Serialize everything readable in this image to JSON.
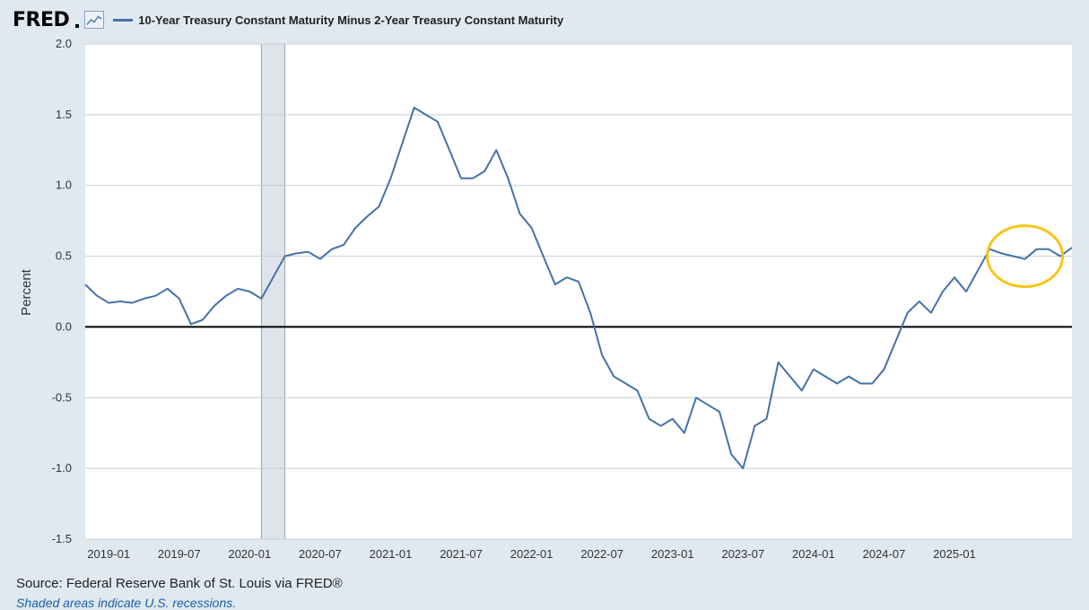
{
  "header": {
    "logo": "FRED",
    "logo_icon": "line-graph-icon",
    "series_title": "10-Year Treasury Constant Maturity Minus 2-Year Treasury Constant Maturity"
  },
  "footer": {
    "source": "Source: Federal Reserve Bank of St. Louis via FRED®",
    "note": "Shaded areas indicate U.S. recessions."
  },
  "colors": {
    "line": "#4572a7",
    "recession": "#dfe3ea",
    "highlight": "#f5c518",
    "background": "#e1e9f0"
  },
  "chart_data": {
    "type": "line",
    "ylabel": "Percent",
    "xlabel": "",
    "ylim": [
      -1.5,
      2.0
    ],
    "yticks": [
      "2.0",
      "1.5",
      "1.0",
      "0.5",
      "0.0",
      "-0.5",
      "-1.0",
      "-1.5"
    ],
    "xlim": [
      "2018-11",
      "2025-11"
    ],
    "xticks": [
      "2019-01",
      "2019-07",
      "2020-01",
      "2020-07",
      "2021-01",
      "2021-07",
      "2022-01",
      "2022-07",
      "2023-01",
      "2023-07",
      "2024-01",
      "2024-07",
      "2025-01"
    ],
    "grid": true,
    "recessions": [
      [
        "2020-02",
        "2020-04"
      ]
    ],
    "highlight_annotation": {
      "shape": "ellipse",
      "center": [
        "2025-07",
        0.5
      ]
    },
    "series": [
      {
        "name": "10-Year Treasury Constant Maturity Minus 2-Year Treasury Constant Maturity",
        "x": [
          "2018-11",
          "2018-12",
          "2019-01",
          "2019-02",
          "2019-03",
          "2019-04",
          "2019-05",
          "2019-06",
          "2019-07",
          "2019-08",
          "2019-09",
          "2019-10",
          "2019-11",
          "2019-12",
          "2020-01",
          "2020-02",
          "2020-03",
          "2020-04",
          "2020-05",
          "2020-06",
          "2020-07",
          "2020-08",
          "2020-09",
          "2020-10",
          "2020-11",
          "2020-12",
          "2021-01",
          "2021-02",
          "2021-03",
          "2021-04",
          "2021-05",
          "2021-06",
          "2021-07",
          "2021-08",
          "2021-09",
          "2021-10",
          "2021-11",
          "2021-12",
          "2022-01",
          "2022-02",
          "2022-03",
          "2022-04",
          "2022-05",
          "2022-06",
          "2022-07",
          "2022-08",
          "2022-09",
          "2022-10",
          "2022-11",
          "2022-12",
          "2023-01",
          "2023-02",
          "2023-03",
          "2023-04",
          "2023-05",
          "2023-06",
          "2023-07",
          "2023-08",
          "2023-09",
          "2023-10",
          "2023-11",
          "2023-12",
          "2024-01",
          "2024-02",
          "2024-03",
          "2024-04",
          "2024-05",
          "2024-06",
          "2024-07",
          "2024-08",
          "2024-09",
          "2024-10",
          "2024-11",
          "2024-12",
          "2025-01",
          "2025-02",
          "2025-03",
          "2025-04",
          "2025-05",
          "2025-06",
          "2025-07",
          "2025-08",
          "2025-09",
          "2025-10",
          "2025-11"
        ],
        "values": [
          0.3,
          0.22,
          0.17,
          0.18,
          0.17,
          0.2,
          0.22,
          0.27,
          0.2,
          0.02,
          0.05,
          0.15,
          0.22,
          0.27,
          0.25,
          0.2,
          0.35,
          0.5,
          0.52,
          0.53,
          0.48,
          0.55,
          0.58,
          0.7,
          0.78,
          0.85,
          1.05,
          1.3,
          1.55,
          1.5,
          1.45,
          1.25,
          1.05,
          1.05,
          1.1,
          1.25,
          1.05,
          0.8,
          0.7,
          0.5,
          0.3,
          0.35,
          0.32,
          0.1,
          -0.2,
          -0.35,
          -0.4,
          -0.45,
          -0.65,
          -0.7,
          -0.65,
          -0.75,
          -0.5,
          -0.55,
          -0.6,
          -0.9,
          -1.0,
          -0.7,
          -0.65,
          -0.25,
          -0.35,
          -0.45,
          -0.3,
          -0.35,
          -0.4,
          -0.35,
          -0.4,
          -0.4,
          -0.3,
          -0.1,
          0.1,
          0.18,
          0.1,
          0.25,
          0.35,
          0.25,
          0.4,
          0.55,
          0.52,
          0.5,
          0.48,
          0.55,
          0.55,
          0.5,
          0.56
        ]
      }
    ]
  }
}
